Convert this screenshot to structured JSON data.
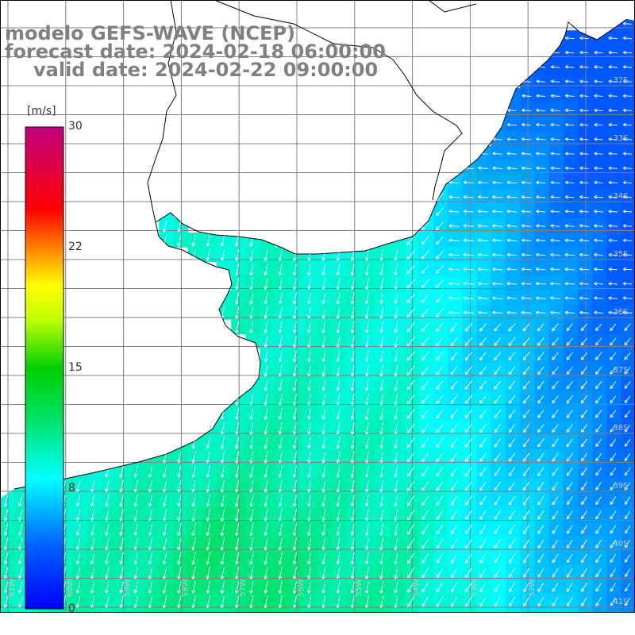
{
  "title": {
    "line1": "modelo GEFS-WAVE (NCEP)",
    "line2": "forecast date: 2024-02-18 06:00:00",
    "line3": "valid date: 2024-02-22 09:00:00"
  },
  "colorbar": {
    "unit": "[m/s]",
    "ticks": [
      {
        "value": 30,
        "label": "30"
      },
      {
        "value": 22,
        "label": "22"
      },
      {
        "value": 15,
        "label": "15"
      },
      {
        "value": 8,
        "label": "8"
      },
      {
        "value": 0,
        "label": "0"
      }
    ],
    "min": 0,
    "max": 30
  },
  "grid_labels": {
    "lat": [
      "32S",
      "33S",
      "34S",
      "35S",
      "36S",
      "37S",
      "38S",
      "39S",
      "40S",
      "41S"
    ],
    "lon": [
      "61W",
      "60W",
      "59W",
      "58W",
      "57W",
      "56W",
      "55W",
      "54W",
      "53W",
      "52W"
    ]
  },
  "colors": {
    "land": "#ffffff",
    "coast": "#000000",
    "grid": "#808080",
    "arrow": "#ffffff"
  },
  "field": {
    "wind_direction": "from east / north-east",
    "speed_range_mps": [
      4,
      12
    ]
  }
}
